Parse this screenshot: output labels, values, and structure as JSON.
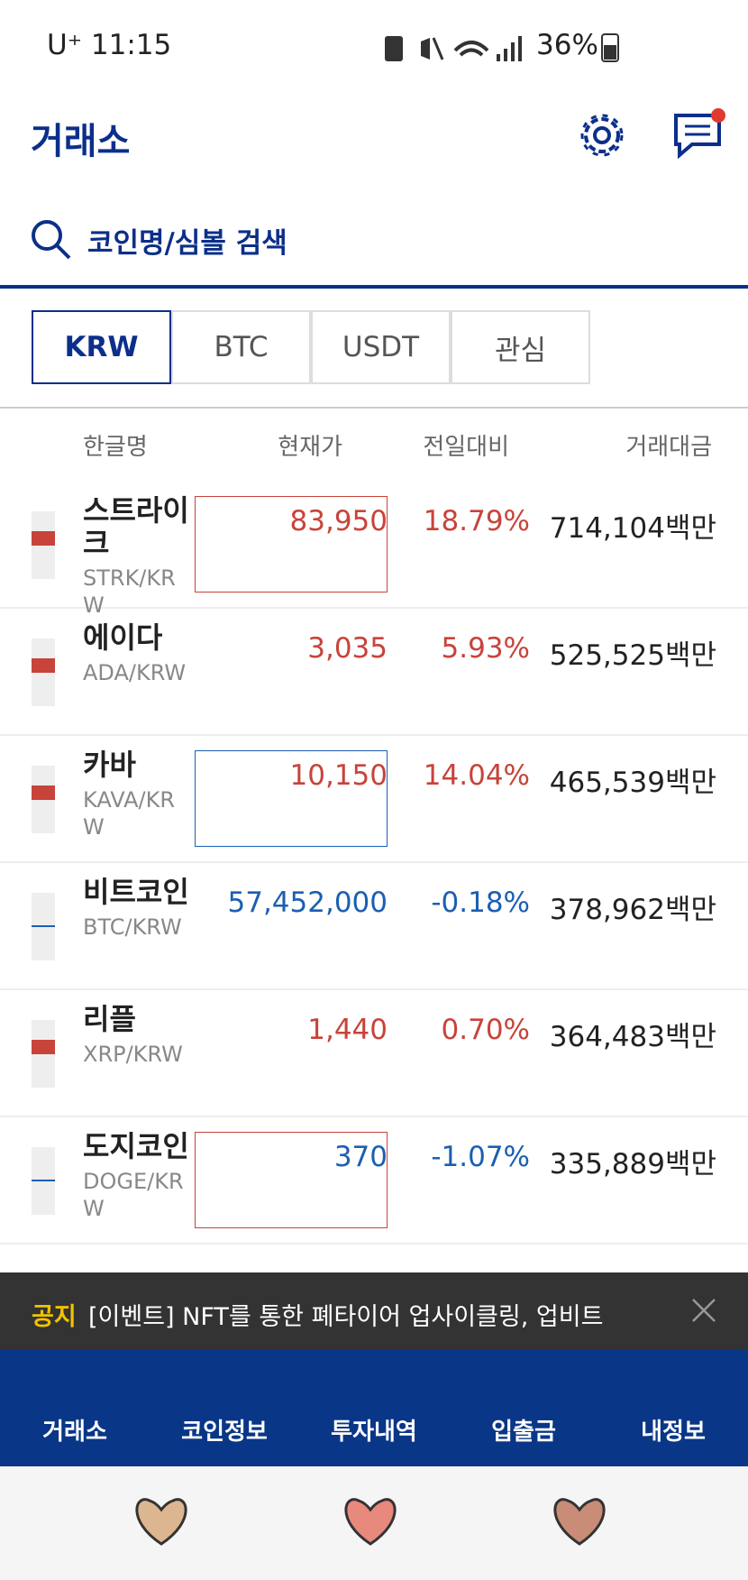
{
  "status_bar": {
    "time": "U⁺ 11:15",
    "battery": "36%"
  },
  "header": {
    "title": "거래소"
  },
  "search": {
    "placeholder": "코인명/심볼 검색"
  },
  "tabs": [
    "KRW",
    "BTC",
    "USDT",
    "관심"
  ],
  "table": {
    "columns": [
      "한글명",
      "현재가",
      "전일대비",
      "거래대금"
    ],
    "rows": [
      {
        "name": "스트라이크",
        "symbol": "STRK/KRW",
        "price": "83,950",
        "change": "18.79%",
        "volume": "714,104백만"
      },
      {
        "name": "에이다",
        "symbol": "ADA/KRW",
        "price": "3,035",
        "change": "5.93%",
        "volume": "525,525백만"
      },
      {
        "name": "카바",
        "symbol": "KAVA/KRW",
        "price": "10,150",
        "change": "14.04%",
        "volume": "465,539백만"
      },
      {
        "name": "비트코인",
        "symbol": "BTC/KRW",
        "price": "57,452,000",
        "change": "-0.18%",
        "volume": "378,962백만"
      },
      {
        "name": "리플",
        "symbol": "XRP/KRW",
        "price": "1,440",
        "change": "0.70%",
        "volume": "364,483백만"
      },
      {
        "name": "도지코인",
        "symbol": "DOGE/KRW",
        "price": "370",
        "change": "-1.07%",
        "volume": "335,889백만"
      }
    ]
  },
  "notice": {
    "label": "공지",
    "text": "[이벤트] NFT를 통한 폐타이어 업사이클링, 업비트 X..."
  },
  "nav": [
    "거래소",
    "코인정보",
    "투자내역",
    "입출금",
    "내정보"
  ]
}
